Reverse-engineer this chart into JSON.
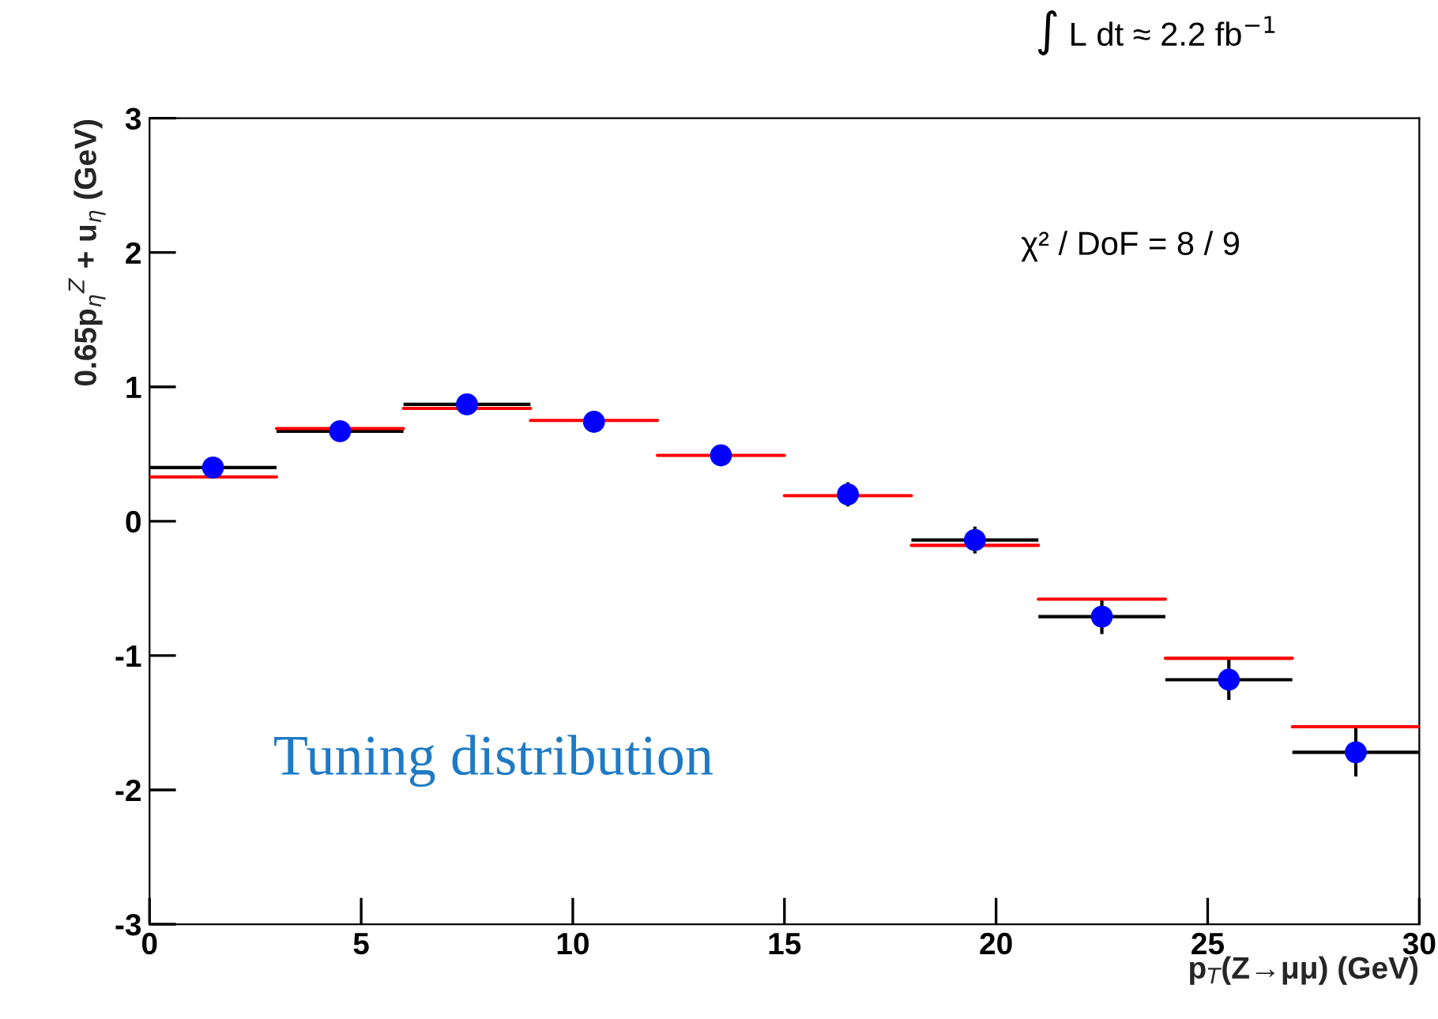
{
  "chart_data": {
    "type": "scatter",
    "xlabel": "p$_{T}$(Z→μμ) (GeV)",
    "ylabel": "0.65p$_{η}$$^{Z}$ + u$_{η}$ (GeV)",
    "annotations": [
      "∫ L dt ≈ 2.2 fb$^{−1}$",
      "χ² / DoF = 8 / 9",
      "Tuning distribution"
    ],
    "x": [
      1.5,
      4.5,
      7.5,
      10.5,
      13.5,
      16.5,
      19.5,
      22.5,
      25.5,
      28.5
    ],
    "series": [
      {
        "marker": "circle",
        "color": "#0000ff",
        "values": [
          0.4,
          0.67,
          0.87,
          0.74,
          0.49,
          0.2,
          -0.14,
          -0.71,
          -1.18,
          -1.72
        ],
        "errors": [
          null,
          null,
          null,
          null,
          null,
          0.09,
          0.1,
          0.13,
          0.15,
          0.18
        ],
        "xerrors": [
          1.5,
          1.5,
          1.5,
          null,
          null,
          null,
          1.5,
          1.5,
          1.5,
          1.5
        ]
      },
      {
        "type": "line",
        "color": "#ff0000",
        "x": [
          0,
          3,
          null,
          3,
          6,
          null,
          6,
          9,
          null,
          9,
          12,
          null,
          12,
          15,
          null,
          15,
          18,
          null,
          18,
          21,
          null,
          21,
          24,
          null,
          24,
          27,
          null,
          27,
          30
        ],
        "values": [
          0.33,
          0.33,
          null,
          0.69,
          0.69,
          null,
          0.84,
          0.84,
          null,
          0.75,
          0.75,
          null,
          0.49,
          0.49,
          null,
          0.19,
          0.19,
          null,
          -0.18,
          -0.18,
          null,
          -0.58,
          -0.58,
          null,
          -1.02,
          -1.02,
          null,
          -1.53,
          -1.53
        ]
      }
    ],
    "xlim": [
      0,
      30
    ],
    "xticks": [
      0,
      5,
      10,
      15,
      20,
      25,
      30
    ],
    "ylim": [
      -3,
      3
    ],
    "yticks": [
      -3,
      -2,
      -1,
      0,
      1,
      2,
      3
    ],
    "grid": false,
    "legend": false
  }
}
